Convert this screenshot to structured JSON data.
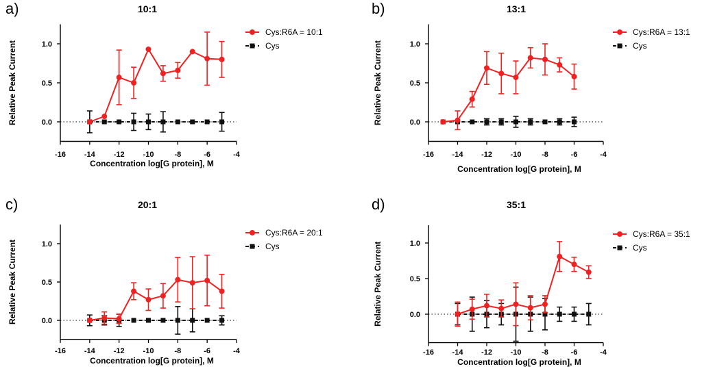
{
  "chart_data": [
    {
      "panel_label": "a)",
      "type": "line",
      "title": "10:1",
      "xlabel": "Concentration log[G protein], M",
      "ylabel": "Relative Peak Current",
      "xlim": [
        -16,
        -4
      ],
      "ylim": [
        -0.25,
        1.25
      ],
      "xticks": [
        -16,
        -14,
        -12,
        -10,
        -8,
        -6,
        -4
      ],
      "xtick_labels": [
        "-16",
        "-14",
        "-12",
        "-10",
        "-8",
        "-6",
        "-4"
      ],
      "yticks": [
        0,
        0.5,
        1
      ],
      "ytick_labels": [
        "0.0",
        "0.5",
        "1.0"
      ],
      "zero_line": true,
      "legend_position": "top-right",
      "series": [
        {
          "name": "Cys:R6A = 10:1",
          "color": "#ee2222",
          "marker": "circle",
          "style": "solid",
          "x": [
            -14,
            -13,
            -12,
            -11,
            -10,
            -9,
            -8,
            -7,
            -6,
            -5
          ],
          "y": [
            0.0,
            0.07,
            0.57,
            0.5,
            0.93,
            0.62,
            0.66,
            0.9,
            0.81,
            0.8
          ],
          "err": [
            0.0,
            0.0,
            0.35,
            0.2,
            0.0,
            0.1,
            0.1,
            0.0,
            0.34,
            0.23
          ]
        },
        {
          "name": "Cys",
          "color": "#111111",
          "marker": "square",
          "style": "dashed",
          "x": [
            -14,
            -13,
            -12,
            -11,
            -10,
            -9,
            -8,
            -7,
            -6,
            -5
          ],
          "y": [
            0,
            0,
            0,
            0,
            0,
            0,
            0,
            0,
            0,
            0
          ],
          "err": [
            0.14,
            0.0,
            0.0,
            0.11,
            0.1,
            0.13,
            0.0,
            0.0,
            0.0,
            0.12
          ]
        }
      ]
    },
    {
      "panel_label": "b)",
      "type": "line",
      "title": "13:1",
      "xlabel": "Concentration log[G protein], M",
      "ylabel": "Relative Peak Current",
      "xlim": [
        -16,
        -4
      ],
      "ylim": [
        -0.25,
        1.25
      ],
      "xticks": [
        -16,
        -14,
        -12,
        -10,
        -8,
        -6,
        -4
      ],
      "xtick_labels": [
        "-16",
        "-14",
        "-12",
        "-10",
        "-8",
        "-6",
        "-4"
      ],
      "yticks": [
        0,
        0.5,
        1
      ],
      "ytick_labels": [
        "0.0",
        "0.5",
        "1.0"
      ],
      "zero_line": true,
      "legend_position": "top-right",
      "series": [
        {
          "name": "Cys:R6A = 13:1",
          "color": "#ee2222",
          "marker": "circle",
          "style": "solid",
          "x": [
            -15,
            -14,
            -13,
            -12,
            -11,
            -10,
            -9,
            -8,
            -7,
            -6
          ],
          "y": [
            0.0,
            0.02,
            0.29,
            0.69,
            0.62,
            0.57,
            0.82,
            0.8,
            0.73,
            0.58
          ],
          "err": [
            0.0,
            0.12,
            0.1,
            0.21,
            0.26,
            0.21,
            0.13,
            0.2,
            0.09,
            0.16
          ]
        },
        {
          "name": "Cys",
          "color": "#111111",
          "marker": "square",
          "style": "dashed",
          "x": [
            -15,
            -14,
            -13,
            -12,
            -11,
            -10,
            -9,
            -8,
            -7,
            -6
          ],
          "y": [
            0,
            0,
            0,
            0,
            0,
            0,
            0,
            0,
            0,
            0
          ],
          "err": [
            0.0,
            0.0,
            0.0,
            0.04,
            0.04,
            0.07,
            0.04,
            0.0,
            0.04,
            0.06
          ]
        }
      ]
    },
    {
      "panel_label": "c)",
      "type": "line",
      "title": "20:1",
      "xlabel": "Concentration log[G protein], M",
      "ylabel": "Relative Peak Current",
      "xlim": [
        -16,
        -4
      ],
      "ylim": [
        -0.25,
        1.25
      ],
      "xticks": [
        -16,
        -14,
        -12,
        -10,
        -8,
        -6,
        -4
      ],
      "xtick_labels": [
        "-16",
        "-14",
        "-12",
        "-10",
        "-8",
        "-6",
        "-4"
      ],
      "yticks": [
        0,
        0.5,
        1
      ],
      "ytick_labels": [
        "0.0",
        "0.5",
        "1.0"
      ],
      "zero_line": true,
      "legend_position": "top-right",
      "series": [
        {
          "name": "Cys:R6A = 20:1",
          "color": "#ee2222",
          "marker": "circle",
          "style": "solid",
          "x": [
            -14,
            -13,
            -12,
            -11,
            -10,
            -9,
            -8,
            -7,
            -6,
            -5
          ],
          "y": [
            0.0,
            0.03,
            0.02,
            0.38,
            0.27,
            0.32,
            0.53,
            0.49,
            0.52,
            0.38
          ],
          "err": [
            0.0,
            0.08,
            0.06,
            0.11,
            0.14,
            0.16,
            0.29,
            0.34,
            0.33,
            0.22
          ]
        },
        {
          "name": "Cys",
          "color": "#111111",
          "marker": "square",
          "style": "dashed",
          "x": [
            -14,
            -13,
            -12,
            -11,
            -10,
            -9,
            -8,
            -7,
            -6,
            -5
          ],
          "y": [
            0,
            0,
            0,
            0,
            0,
            0,
            0,
            0,
            0,
            0
          ],
          "err": [
            0.07,
            0.06,
            0.08,
            0.0,
            0.0,
            0.0,
            0.18,
            0.15,
            0.0,
            0.06
          ]
        }
      ]
    },
    {
      "panel_label": "d)",
      "type": "line",
      "title": "35:1",
      "xlabel": "Concentration log[G protein], M",
      "ylabel": "Relative Peak Current",
      "xlim": [
        -16,
        -4
      ],
      "ylim": [
        -0.4,
        1.25
      ],
      "xticks": [
        -16,
        -14,
        -12,
        -10,
        -8,
        -6,
        -4
      ],
      "xtick_labels": [
        "-16",
        "-14",
        "-12",
        "-10",
        "-8",
        "-6",
        "-4"
      ],
      "yticks": [
        0,
        0.5,
        1
      ],
      "ytick_labels": [
        "0.0",
        "0.5",
        "1.0"
      ],
      "zero_line": true,
      "legend_position": "top-right",
      "series": [
        {
          "name": "Cys:R6A = 35:1",
          "color": "#ee2222",
          "marker": "circle",
          "style": "solid",
          "x": [
            -14,
            -13,
            -12,
            -11,
            -10,
            -9,
            -8,
            -7,
            -6,
            -5
          ],
          "y": [
            0.0,
            0.07,
            0.12,
            0.08,
            0.14,
            0.09,
            0.14,
            0.81,
            0.7,
            0.59
          ],
          "err": [
            0.17,
            0.14,
            0.16,
            0.12,
            0.3,
            0.17,
            0.12,
            0.21,
            0.1,
            0.09
          ]
        },
        {
          "name": "Cys",
          "color": "#111111",
          "marker": "square",
          "style": "dashed",
          "x": [
            -14,
            -13,
            -12,
            -11,
            -10,
            -9,
            -8,
            -7,
            -6,
            -5
          ],
          "y": [
            0,
            0,
            0,
            0,
            0,
            0,
            0,
            0,
            0,
            0
          ],
          "err": [
            0.15,
            0.24,
            0.19,
            0.15,
            0.38,
            0.24,
            0.22,
            0.1,
            0.1,
            0.15
          ]
        }
      ]
    }
  ]
}
